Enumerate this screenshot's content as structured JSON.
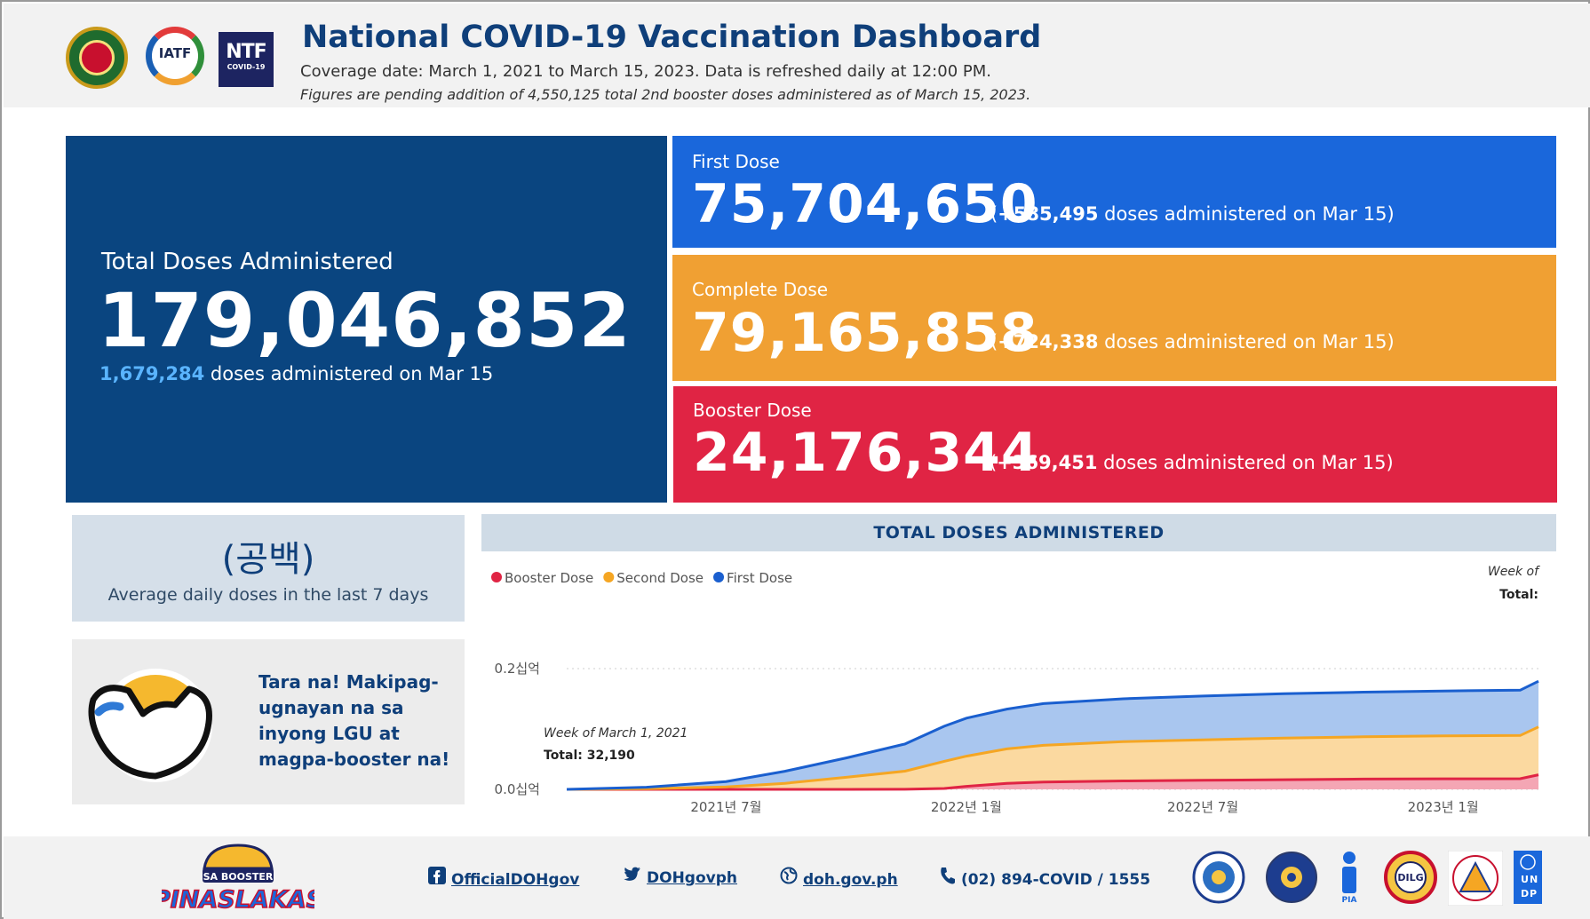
{
  "header": {
    "title": "National COVID-19 Vaccination Dashboard",
    "coverage": "Coverage date: March 1, 2021 to March 15, 2023. Data is refreshed daily at 12:00 PM.",
    "pending_note": "Figures are pending addition of 4,550,125 total 2nd booster doses administered as of March 15, 2023.",
    "logos": {
      "doh": "doh-seal-icon",
      "iatf": "IATF",
      "ntf_big": "NTF",
      "ntf_small": "COVID-19"
    }
  },
  "total": {
    "label": "Total Doses Administered",
    "value": "179,046,852",
    "daily_value": "1,679,284",
    "daily_suffix": " doses administered on Mar 15"
  },
  "first_dose": {
    "label": "First Dose",
    "value": "75,704,650",
    "delta_open": "(",
    "delta": "+585,495",
    "delta_suffix": " doses administered on Mar 15)"
  },
  "complete_dose": {
    "label": "Complete Dose",
    "value": "79,165,858",
    "delta_open": "(",
    "delta": "+724,338",
    "delta_suffix": " doses administered on Mar 15)"
  },
  "booster_dose": {
    "label": "Booster Dose",
    "value": "24,176,344",
    "delta_open": "(",
    "delta": "+369,451",
    "delta_suffix": " doses administered on Mar 15)"
  },
  "average": {
    "value": "(공백)",
    "label": "Average daily doses in the last 7 days"
  },
  "promo": {
    "text": "Tara na! Makipag-ugnayan na sa inyong LGU at magpa-booster na!"
  },
  "chart": {
    "title": "TOTAL DOSES ADMINISTERED",
    "tooltip_right_title": "Week of",
    "tooltip_right_total": "Total:",
    "tooltip_left_title": "Week of March 1, 2021",
    "tooltip_left_total": "Total: 32,190"
  },
  "chart_data": {
    "type": "area",
    "stacked": true,
    "title": "TOTAL DOSES ADMINISTERED",
    "legend_placement": "top-left",
    "y_ticks": [
      "0.0십억",
      "0.2십억"
    ],
    "y_tick_values": [
      0,
      200000000
    ],
    "ylim": [
      0,
      200000000
    ],
    "x_ticks": [
      "2021년 7월",
      "2022년 1월",
      "2022년 7월",
      "2023년 1월"
    ],
    "x_tick_dates": [
      "2021-07-01",
      "2022-01-01",
      "2022-07-01",
      "2023-01-01"
    ],
    "x": [
      "2021-03-01",
      "2021-05-01",
      "2021-07-01",
      "2021-08-15",
      "2021-10-01",
      "2021-11-15",
      "2021-12-15",
      "2022-01-01",
      "2022-02-01",
      "2022-03-01",
      "2022-05-01",
      "2022-07-01",
      "2022-09-01",
      "2022-11-01",
      "2023-01-01",
      "2023-03-01",
      "2023-03-15"
    ],
    "series": [
      {
        "name": "Booster Dose",
        "color": "#e02444",
        "values": [
          0,
          0,
          0,
          0,
          0,
          100000,
          1500000,
          5000000,
          10000000,
          12000000,
          14000000,
          15000000,
          16000000,
          17000000,
          17500000,
          17700000,
          24176344
        ]
      },
      {
        "name": "Second Dose",
        "color": "#f5a623",
        "values": [
          0,
          1000000,
          4000000,
          10000000,
          20000000,
          30000000,
          45000000,
          50000000,
          57000000,
          61000000,
          65000000,
          67000000,
          69000000,
          70000000,
          71000000,
          71500000,
          79165858
        ]
      },
      {
        "name": "First Dose",
        "color": "#1a5fcf",
        "values": [
          32190,
          2500000,
          9000000,
          20000000,
          32000000,
          45000000,
          58000000,
          63000000,
          66000000,
          69000000,
          71000000,
          72500000,
          73500000,
          74000000,
          74500000,
          75000000,
          75704650
        ]
      }
    ],
    "tooltips": [
      {
        "title": "Week of March 1, 2021",
        "total": "Total: 32,190"
      },
      {
        "title": "Week of",
        "total": "Total:"
      }
    ]
  },
  "footer": {
    "facebook": "OfficialDOHgov",
    "twitter": "DOHgovph",
    "website": "doh.gov.ph",
    "phone": "(02) 894-COVID / 1555",
    "campaign_logo_top": "SA BOOSTER",
    "campaign_logo_bottom": "PINASLAKAS",
    "partners": [
      "PCOO",
      "NEDA",
      "PIA",
      "DILG",
      "DICT",
      "UNDP"
    ]
  }
}
